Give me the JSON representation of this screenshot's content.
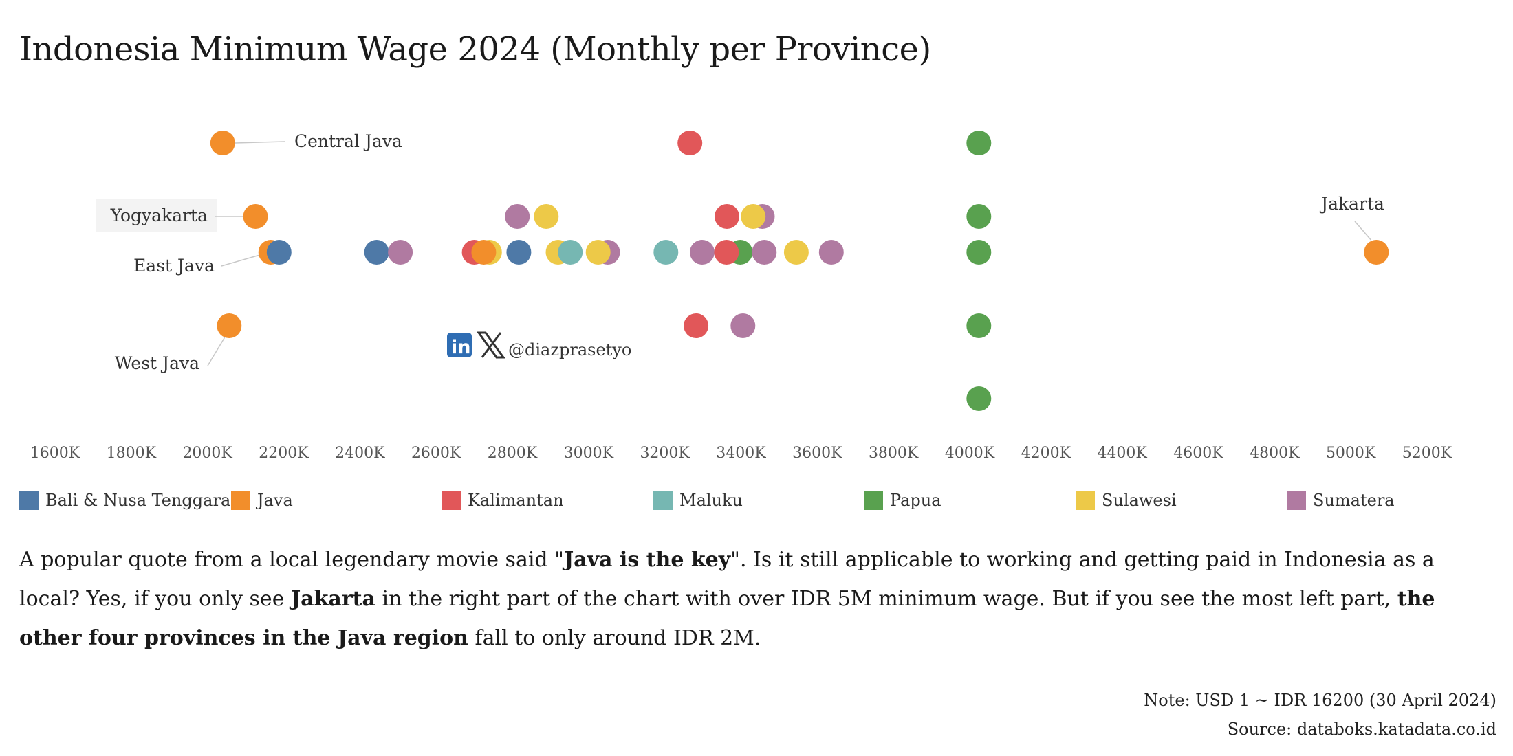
{
  "title": "Indonesia Minimum Wage 2024 (Monthly per Province)",
  "colors": {
    "Bali & Nusa Tenggara": "#4e79a7",
    "Java": "#f28e2b",
    "Kalimantan": "#e15759",
    "Maluku": "#76b7b2",
    "Papua": "#59a14f",
    "Sulawesi": "#edc948",
    "Sumatera": "#b07aa1"
  },
  "chart_data": {
    "type": "scatter",
    "xlabel": "",
    "ylabel": "",
    "xlim": [
      1600,
      5200
    ],
    "x_unit": "K IDR",
    "ticks": [
      "1600K",
      "1800K",
      "2000K",
      "2200K",
      "2400K",
      "2600K",
      "2800K",
      "3000K",
      "3200K",
      "3400K",
      "3600K",
      "3800K",
      "4000K",
      "4200K",
      "4400K",
      "4600K",
      "4800K",
      "5000K",
      "5200K"
    ],
    "tick_values": [
      1600,
      1800,
      2000,
      2200,
      2400,
      2600,
      2800,
      3000,
      3200,
      3400,
      3600,
      3800,
      4000,
      4200,
      4400,
      4600,
      4800,
      5000,
      5200
    ],
    "rows": 5,
    "points": [
      {
        "x": 2040,
        "row": 0,
        "region": "Java"
      },
      {
        "x": 3266,
        "row": 0,
        "region": "Kalimantan"
      },
      {
        "x": 4024,
        "row": 0,
        "region": "Papua"
      },
      {
        "x": 2126,
        "row": 1,
        "region": "Java"
      },
      {
        "x": 2813,
        "row": 1,
        "region": "Sumatera"
      },
      {
        "x": 2889,
        "row": 1,
        "region": "Sulawesi"
      },
      {
        "x": 3363,
        "row": 1,
        "region": "Kalimantan"
      },
      {
        "x": 3456,
        "row": 1,
        "region": "Sumatera"
      },
      {
        "x": 3432,
        "row": 1,
        "region": "Sulawesi"
      },
      {
        "x": 4024,
        "row": 1,
        "region": "Papua"
      },
      {
        "x": 2166,
        "row": 2,
        "region": "Java"
      },
      {
        "x": 2188,
        "row": 2,
        "region": "Bali & Nusa Tenggara"
      },
      {
        "x": 2444,
        "row": 2,
        "region": "Bali & Nusa Tenggara"
      },
      {
        "x": 2506,
        "row": 2,
        "region": "Sumatera"
      },
      {
        "x": 2700,
        "row": 2,
        "region": "Kalimantan"
      },
      {
        "x": 2740,
        "row": 2,
        "region": "Sulawesi"
      },
      {
        "x": 2725,
        "row": 2,
        "region": "Java"
      },
      {
        "x": 2817,
        "row": 2,
        "region": "Bali & Nusa Tenggara"
      },
      {
        "x": 2920,
        "row": 2,
        "region": "Sulawesi"
      },
      {
        "x": 3050,
        "row": 2,
        "region": "Sumatera"
      },
      {
        "x": 2952,
        "row": 2,
        "region": "Maluku"
      },
      {
        "x": 3025,
        "row": 2,
        "region": "Sulawesi"
      },
      {
        "x": 3203,
        "row": 2,
        "region": "Maluku"
      },
      {
        "x": 3298,
        "row": 2,
        "region": "Sumatera"
      },
      {
        "x": 3398,
        "row": 2,
        "region": "Papua"
      },
      {
        "x": 3362,
        "row": 2,
        "region": "Kalimantan"
      },
      {
        "x": 3461,
        "row": 2,
        "region": "Sumatera"
      },
      {
        "x": 3545,
        "row": 2,
        "region": "Sulawesi"
      },
      {
        "x": 3637,
        "row": 2,
        "region": "Sumatera"
      },
      {
        "x": 4024,
        "row": 2,
        "region": "Papua"
      },
      {
        "x": 5067,
        "row": 2,
        "region": "Java"
      },
      {
        "x": 2057,
        "row": 3,
        "region": "Java"
      },
      {
        "x": 3282,
        "row": 3,
        "region": "Kalimantan"
      },
      {
        "x": 3405,
        "row": 3,
        "region": "Sumatera"
      },
      {
        "x": 4024,
        "row": 3,
        "region": "Papua"
      },
      {
        "x": 4024,
        "row": 4,
        "region": "Papua"
      }
    ],
    "annotations": [
      {
        "text": "Central Java",
        "x": 2040,
        "row": 0
      },
      {
        "text": "Yogyakarta",
        "x": 2126,
        "row": 1
      },
      {
        "text": "East Java",
        "x": 2166,
        "row": 2
      },
      {
        "text": "Jakarta",
        "x": 5067,
        "row": 2
      },
      {
        "text": "West Java",
        "x": 2057,
        "row": 3
      }
    ],
    "legend": [
      "Bali & Nusa Tenggara",
      "Java",
      "Kalimantan",
      "Maluku",
      "Papua",
      "Sulawesi",
      "Sumatera"
    ],
    "legend_position": "bottom"
  },
  "watermark": {
    "handle": "@diazprasetyo",
    "linkedin_icon": "linkedin-icon",
    "x_icon": "x-logo-icon"
  },
  "description": {
    "p1": "A popular quote from a local legendary movie said \"",
    "b1": "Java is the key",
    "p2": "\". Is it still applicable to working and getting paid in Indonesia as a local? Yes, if you only see ",
    "b2": "Jakarta",
    "p3": " in the right part of the chart with over IDR 5M minimum wage. But if you see the most left part, ",
    "b3": "the other four provinces in the Java region",
    "p4": " fall to only around IDR 2M."
  },
  "note": "Note: USD 1 ~ IDR 16200 (30 April 2024)",
  "source": "Source: databoks.katadata.co.id"
}
